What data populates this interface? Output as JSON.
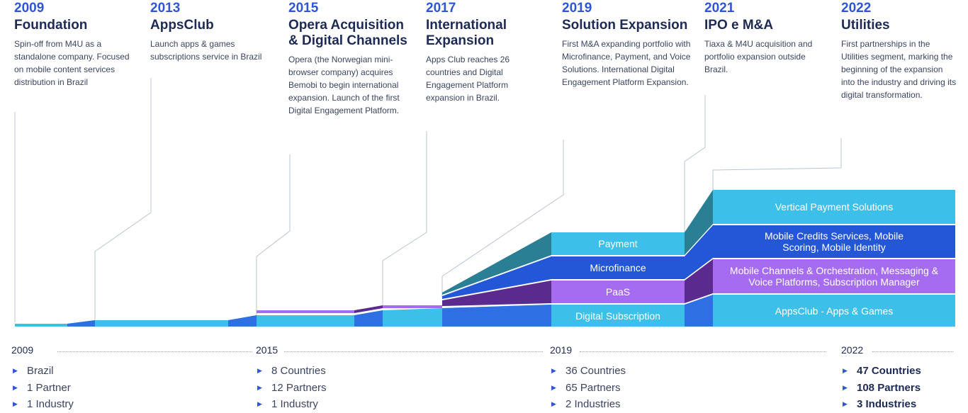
{
  "milestones": [
    {
      "year": "2009",
      "title": "Foundation",
      "desc": "Spin-off from M4U as a standalone company. Focused on mobile content services distribution in Brazil"
    },
    {
      "year": "2013",
      "title": "AppsClub",
      "desc": "Launch apps & games subscriptions service in Brazil"
    },
    {
      "year": "2015",
      "title": "Opera Acquisition & Digital Channels",
      "desc": "Opera (the Norwegian mini-browser company) acquires Bemobi to begin international expansion. Launch of the first Digital Engagement Platform."
    },
    {
      "year": "2017",
      "title": "International Expansion",
      "desc": "Apps Club reaches 26 countries and Digital Engagement Platform expansion in Brazil."
    },
    {
      "year": "2019",
      "title": "Solution Expansion",
      "desc": "First M&A expanding portfolio with Microfinance, Payment, and Voice Solutions. International Digital Engagement Platform Expansion."
    },
    {
      "year": "2021",
      "title": "IPO e M&A",
      "desc": "Tiaxa & M4U acquisition and portfolio expansion outside Brazil."
    },
    {
      "year": "2022",
      "title": "Utilities",
      "desc": "First partnerships in the Utilities segment, marking the beginning of the expansion into the industry and driving its digital transformation."
    }
  ],
  "bands_2019": {
    "payment": "Payment",
    "microfinance": "Microfinance",
    "paas": "PaaS",
    "digital_subscription": "Digital Subscription"
  },
  "bands_2022": {
    "vertical_payment": "Vertical Payment Solutions",
    "mobile_credits": "Mobile Credits Services, Mobile Scoring, Mobile Identity",
    "mobile_channels": "Mobile Channels & Orchestration, Messaging & Voice Platforms, Subscription Manager",
    "appsclub": "AppsClub - Apps & Games"
  },
  "stats": [
    {
      "year": "2009",
      "items": [
        "Brazil",
        "1 Partner",
        "1 Industry"
      ]
    },
    {
      "year": "2015",
      "items": [
        "8 Countries",
        "12 Partners",
        "1 Industry"
      ]
    },
    {
      "year": "2019",
      "items": [
        "36 Countries",
        "65 Partners",
        "2 Industries"
      ]
    },
    {
      "year": "2022",
      "items": [
        "47 Countries",
        "108 Partners",
        "3 Industries"
      ]
    }
  ],
  "colors": {
    "light_blue": "#3cc0ea",
    "blue": "#2f6fe4",
    "royal_blue": "#2456d8",
    "purple": "#a56cf2",
    "dark_purple": "#5a2a8e",
    "teal": "#2a7f95",
    "year_blue": "#2e56d6",
    "title_navy": "#1d2a55"
  }
}
